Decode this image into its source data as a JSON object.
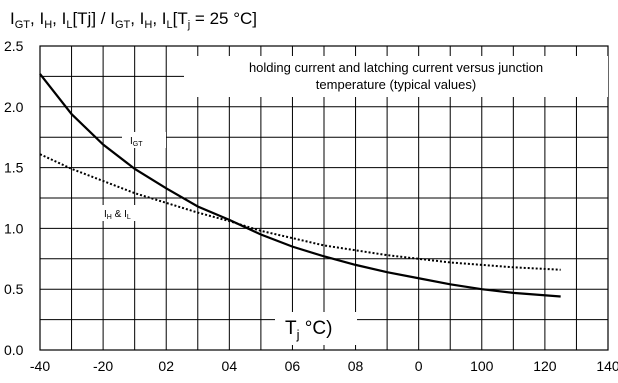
{
  "chart_data": {
    "type": "line",
    "title_parts": {
      "i1": "I",
      "s1": "GT",
      "c1": ", I",
      "s2": "H",
      "c2": ", I",
      "s3": "L",
      "m": "[Tj] / I",
      "s4": "GT",
      "c4": ", I",
      "s5": "H",
      "c5": ", I",
      "s6": "L",
      "e": "[T",
      "s7": "j",
      "f": " = 25 °C]"
    },
    "annotation": {
      "line1": "holding current and latching current versus junction",
      "line2": "temperature (typical values)"
    },
    "x_label": {
      "main": "T",
      "sub": "j",
      "unit": " °C)"
    },
    "x_tick_labels": [
      "-40",
      "-20",
      "02",
      "04",
      "06",
      "08",
      "0",
      "100",
      "120",
      "140"
    ],
    "y_tick_labels": [
      "0.0",
      "0.5",
      "1.0",
      "1.5",
      "2.0",
      "2.5"
    ],
    "y_ticks": [
      0,
      0.5,
      1.0,
      1.5,
      2.0,
      2.5
    ],
    "xlim": [
      -40,
      140
    ],
    "ylim": [
      0,
      2.5
    ],
    "grid": true,
    "series": [
      {
        "name": "IGT",
        "label_main": "I",
        "label_sub": "GT",
        "style": "solid",
        "x": [
          -40,
          -30,
          -20,
          -10,
          0,
          10,
          20,
          30,
          40,
          50,
          60,
          70,
          80,
          90,
          100,
          110,
          125
        ],
        "y": [
          2.27,
          1.94,
          1.69,
          1.49,
          1.33,
          1.18,
          1.07,
          0.95,
          0.85,
          0.77,
          0.7,
          0.64,
          0.59,
          0.54,
          0.5,
          0.47,
          0.44
        ]
      },
      {
        "name": "IH & IL",
        "label_main": "I",
        "label_sub1": "H",
        "label_mid": " & I",
        "label_sub2": "L",
        "style": "dotted",
        "x": [
          -40,
          -30,
          -20,
          -10,
          0,
          10,
          20,
          30,
          40,
          50,
          60,
          70,
          80,
          90,
          100,
          110,
          125
        ],
        "y": [
          1.61,
          1.49,
          1.39,
          1.29,
          1.21,
          1.13,
          1.06,
          0.98,
          0.92,
          0.86,
          0.82,
          0.78,
          0.75,
          0.72,
          0.7,
          0.68,
          0.66
        ]
      }
    ]
  }
}
